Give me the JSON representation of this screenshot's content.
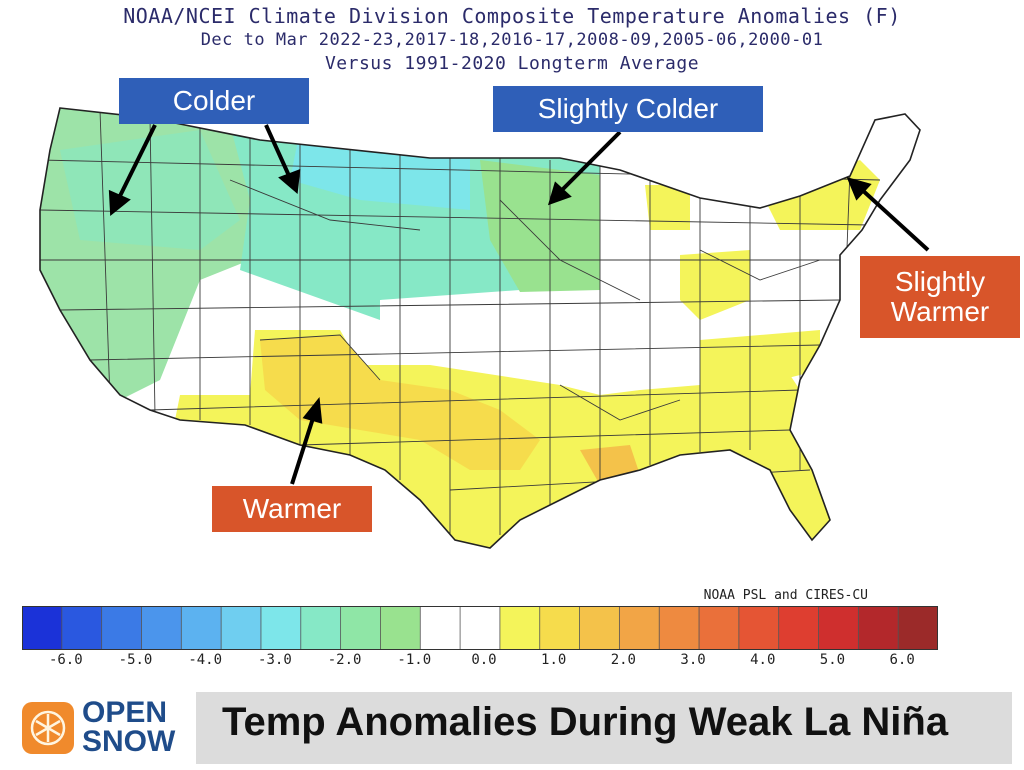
{
  "title": {
    "line1": "NOAA/NCEI Climate Division Composite Temperature Anomalies (F)",
    "line2": "Dec to Mar  2022-23,2017-18,2016-17,2008-09,2005-06,2000-01",
    "line3": "Versus 1991-2020 Longterm Average"
  },
  "callouts": {
    "colder": "Colder",
    "slightly_colder": "Slightly Colder",
    "slightly_warmer_line1": "Slightly",
    "slightly_warmer_line2": "Warmer",
    "warmer": "Warmer"
  },
  "credit": "NOAA PSL and CIRES-CU",
  "colorbar": {
    "ticks": [
      "-6.0",
      "-5.0",
      "-4.0",
      "-3.0",
      "-2.0",
      "-1.0",
      "0.0",
      "1.0",
      "2.0",
      "3.0",
      "4.0",
      "5.0",
      "6.0"
    ],
    "colors": [
      "#1b32d8",
      "#2a58e0",
      "#3b7ae6",
      "#4b95ec",
      "#5cb2f0",
      "#6fcef0",
      "#7de6ea",
      "#86e8c6",
      "#8fe6a6",
      "#99e28f",
      "#ffffff",
      "#ffffff",
      "#f4f45a",
      "#f6dc4c",
      "#f4c24a",
      "#f2a546",
      "#ee8a40",
      "#ea703a",
      "#e55534",
      "#de3e30",
      "#cf2f2e",
      "#b3282b",
      "#9b2a29"
    ]
  },
  "regions_colors": {
    "colder_light": "#9de3a8",
    "colder_mid": "#86e8c6",
    "colder_cyan": "#7de6ea",
    "neutral": "#ffffff",
    "warm_light": "#f4f45a",
    "warm_mid": "#f6dc4c",
    "warm_orange": "#f4c24a"
  },
  "footer": {
    "logo_line1": "OPEN",
    "logo_line2": "SNOW",
    "title": "Temp Anomalies During Weak La Niña"
  }
}
